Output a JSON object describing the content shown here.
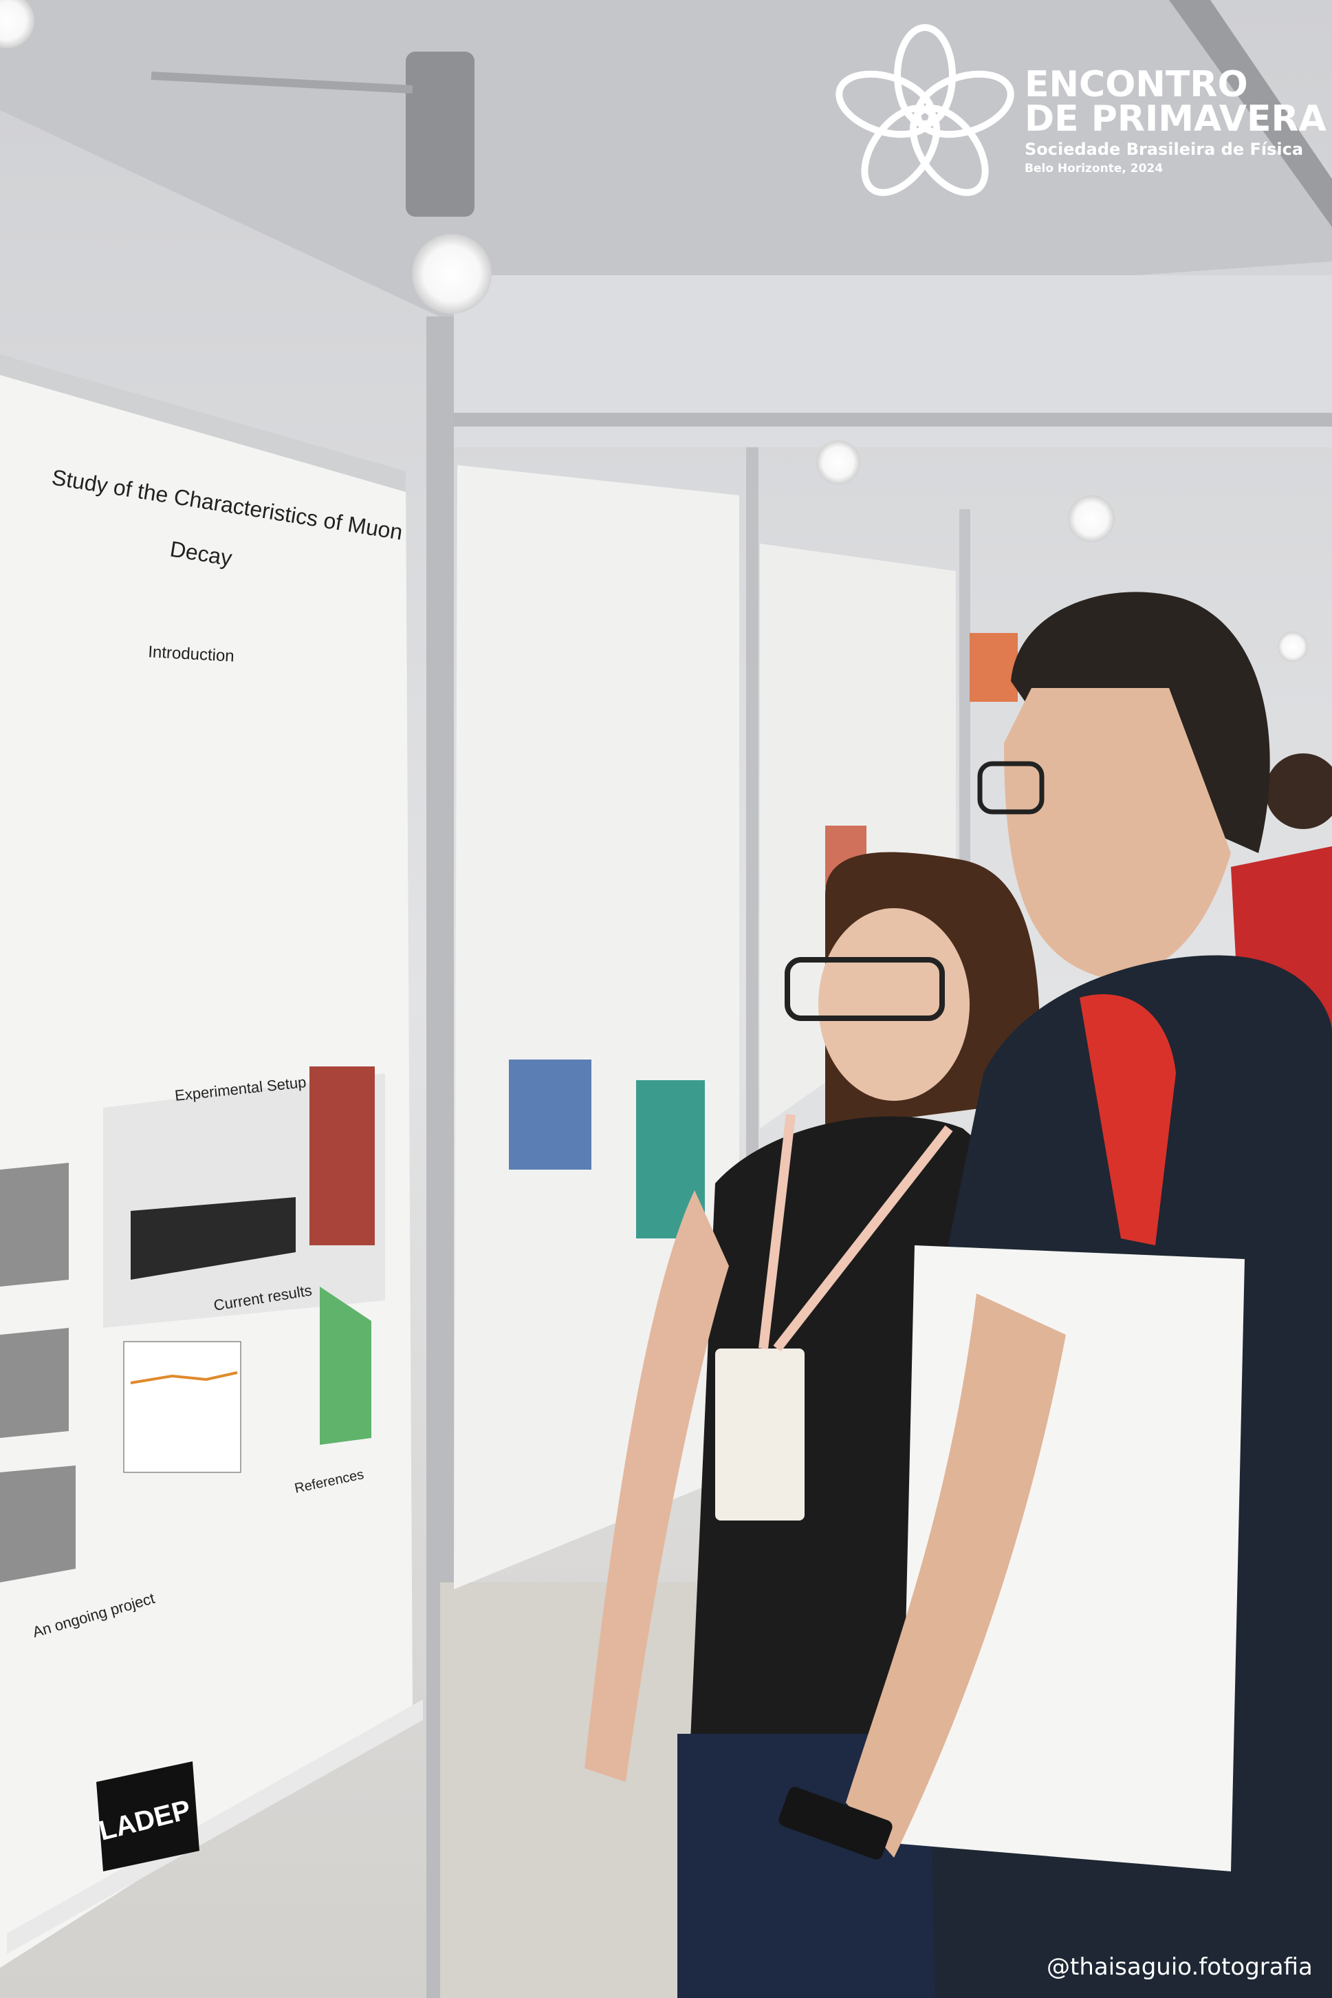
{
  "logo": {
    "line1": "ENCONTRO",
    "line2": "DE PRIMAVERA",
    "society": "Sociedade Brasileira de Física",
    "location": "Belo Horizonte, 2024"
  },
  "poster": {
    "title_lines": [
      "Study of the Characteristics of Muon",
      "Decay"
    ],
    "sections": [
      "Introduction",
      "Experimental Setup",
      "Current results",
      "References",
      "An ongoing project"
    ],
    "lab": "LADEP"
  },
  "watermark": "@thaisaguio.fotografia"
}
